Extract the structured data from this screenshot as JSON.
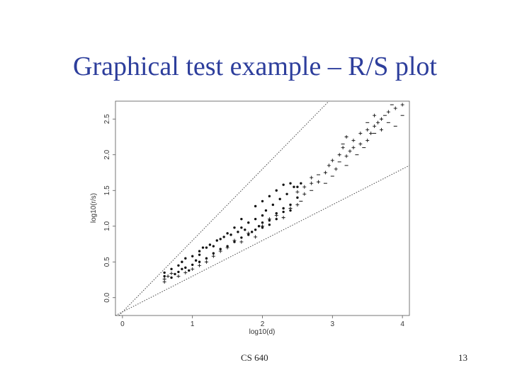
{
  "slide": {
    "title": "Graphical test example – R/S plot",
    "footer_left": "CS 640",
    "footer_right": "13"
  },
  "chart_data": {
    "type": "scatter",
    "title": "",
    "xlabel": "log10(d)",
    "ylabel": "log10(r/s)",
    "xlim": [
      -0.1,
      4.1
    ],
    "ylim": [
      -0.25,
      2.75
    ],
    "x_ticks": [
      0,
      1,
      2,
      3,
      4
    ],
    "x_tick_labels": [
      "0",
      "1",
      "2",
      "3",
      "4"
    ],
    "y_ticks": [
      0.0,
      0.5,
      1.0,
      1.5,
      2.0,
      2.5
    ],
    "y_tick_labels": [
      "0.0",
      "0.5",
      "1.0",
      "1.5",
      "2.0",
      "2.5"
    ],
    "grid": false,
    "reference_lines": [
      {
        "slope": 1.0,
        "intercept": -0.2
      },
      {
        "slope": 0.5,
        "intercept": -0.2
      }
    ],
    "series": [
      {
        "marker": "dot",
        "points": [
          [
            0.6,
            0.3
          ],
          [
            0.6,
            0.35
          ],
          [
            0.7,
            0.28
          ],
          [
            0.7,
            0.4
          ],
          [
            0.75,
            0.33
          ],
          [
            0.8,
            0.45
          ],
          [
            0.8,
            0.36
          ],
          [
            0.85,
            0.5
          ],
          [
            0.85,
            0.4
          ],
          [
            0.9,
            0.55
          ],
          [
            0.9,
            0.42
          ],
          [
            0.95,
            0.38
          ],
          [
            1.0,
            0.58
          ],
          [
            1.0,
            0.46
          ],
          [
            1.05,
            0.52
          ],
          [
            1.1,
            0.65
          ],
          [
            1.1,
            0.5
          ],
          [
            1.15,
            0.7
          ],
          [
            1.2,
            0.55
          ],
          [
            1.25,
            0.74
          ],
          [
            1.3,
            0.62
          ],
          [
            1.35,
            0.8
          ],
          [
            1.4,
            0.68
          ],
          [
            1.45,
            0.85
          ],
          [
            1.5,
            0.72
          ],
          [
            1.55,
            0.88
          ],
          [
            1.6,
            0.78
          ],
          [
            1.65,
            0.92
          ],
          [
            1.7,
            0.84
          ],
          [
            1.7,
            0.98
          ],
          [
            1.75,
            0.95
          ],
          [
            1.8,
            1.05
          ],
          [
            1.85,
            0.92
          ],
          [
            1.9,
            1.1
          ],
          [
            1.95,
            1.0
          ],
          [
            2.0,
            1.15
          ],
          [
            2.0,
            0.98
          ],
          [
            2.05,
            1.22
          ],
          [
            2.1,
            1.08
          ],
          [
            2.15,
            1.3
          ],
          [
            2.2,
            1.18
          ],
          [
            2.25,
            1.38
          ],
          [
            2.3,
            1.25
          ],
          [
            2.35,
            1.45
          ],
          [
            2.4,
            1.3
          ],
          [
            2.45,
            1.55
          ],
          [
            2.5,
            1.4
          ],
          [
            2.55,
            1.6
          ],
          [
            1.8,
            0.88
          ],
          [
            1.9,
            0.95
          ],
          [
            2.0,
            1.05
          ],
          [
            2.1,
            1.02
          ],
          [
            2.2,
            1.1
          ],
          [
            2.3,
            1.2
          ],
          [
            2.4,
            1.22
          ],
          [
            2.2,
            1.5
          ],
          [
            2.1,
            1.42
          ],
          [
            2.0,
            1.35
          ],
          [
            1.9,
            1.28
          ],
          [
            1.7,
            1.1
          ],
          [
            1.6,
            0.98
          ],
          [
            1.5,
            0.9
          ],
          [
            1.4,
            0.82
          ],
          [
            1.3,
            0.72
          ],
          [
            1.2,
            0.7
          ],
          [
            1.1,
            0.6
          ],
          [
            2.3,
            1.58
          ],
          [
            2.4,
            1.6
          ],
          [
            2.5,
            1.55
          ]
        ]
      },
      {
        "marker": "plus",
        "points": [
          [
            0.6,
            0.22
          ],
          [
            0.6,
            0.26
          ],
          [
            0.65,
            0.3
          ],
          [
            0.7,
            0.34
          ],
          [
            0.8,
            0.3
          ],
          [
            0.9,
            0.35
          ],
          [
            1.0,
            0.4
          ],
          [
            1.1,
            0.45
          ],
          [
            1.2,
            0.5
          ],
          [
            1.3,
            0.58
          ],
          [
            1.4,
            0.65
          ],
          [
            1.5,
            0.7
          ],
          [
            1.6,
            0.8
          ],
          [
            1.7,
            0.78
          ],
          [
            1.8,
            0.9
          ],
          [
            1.9,
            0.85
          ],
          [
            2.0,
            1.0
          ],
          [
            2.1,
            1.1
          ],
          [
            2.2,
            1.15
          ],
          [
            2.3,
            1.12
          ],
          [
            2.4,
            1.25
          ],
          [
            2.5,
            1.3
          ],
          [
            2.5,
            1.48
          ],
          [
            2.6,
            1.55
          ],
          [
            2.6,
            1.45
          ],
          [
            2.7,
            1.6
          ],
          [
            2.7,
            1.68
          ],
          [
            2.8,
            1.62
          ],
          [
            2.9,
            1.75
          ],
          [
            2.95,
            1.85
          ],
          [
            3.0,
            1.92
          ],
          [
            3.05,
            1.8
          ],
          [
            3.1,
            2.0
          ],
          [
            3.15,
            2.1
          ],
          [
            3.2,
            1.98
          ],
          [
            3.2,
            2.25
          ],
          [
            3.3,
            2.2
          ],
          [
            3.3,
            2.1
          ],
          [
            3.4,
            2.3
          ],
          [
            3.5,
            2.35
          ],
          [
            3.5,
            2.2
          ],
          [
            3.6,
            2.4
          ],
          [
            3.6,
            2.55
          ],
          [
            3.7,
            2.5
          ],
          [
            3.7,
            2.35
          ],
          [
            3.8,
            2.6
          ],
          [
            3.9,
            2.65
          ],
          [
            4.0,
            2.7
          ],
          [
            3.4,
            2.15
          ],
          [
            3.25,
            2.05
          ],
          [
            3.55,
            2.3
          ],
          [
            3.65,
            2.45
          ]
        ]
      },
      {
        "marker": "dash",
        "points": [
          [
            2.55,
            1.35
          ],
          [
            2.7,
            1.5
          ],
          [
            2.8,
            1.72
          ],
          [
            3.0,
            1.7
          ],
          [
            3.1,
            1.9
          ],
          [
            3.2,
            1.85
          ],
          [
            3.35,
            2.0
          ],
          [
            3.45,
            2.1
          ],
          [
            3.5,
            2.45
          ],
          [
            3.6,
            2.3
          ],
          [
            3.75,
            2.55
          ],
          [
            3.8,
            2.45
          ],
          [
            3.85,
            2.7
          ],
          [
            3.9,
            2.4
          ],
          [
            4.0,
            2.55
          ],
          [
            2.9,
            1.6
          ],
          [
            3.15,
            2.15
          ]
        ]
      }
    ]
  }
}
